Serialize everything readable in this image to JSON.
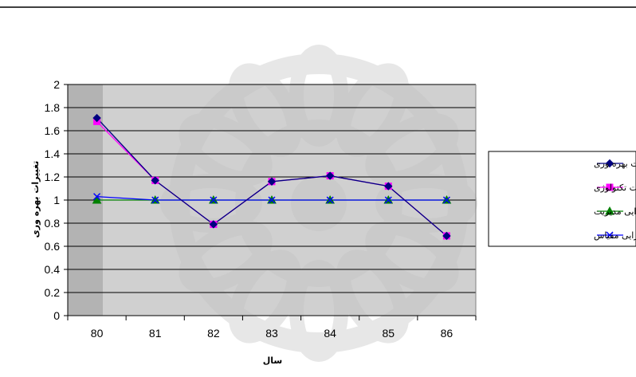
{
  "chart_data": {
    "type": "line",
    "title": "",
    "xlabel": "سال",
    "ylabel": "تغییرات بهره وری",
    "categories": [
      "80",
      "81",
      "82",
      "83",
      "84",
      "85",
      "86"
    ],
    "ylim": [
      0,
      2
    ],
    "yticks": [
      "0",
      "0.2",
      "0.4",
      "0.6",
      "0.8",
      "1",
      "1.2",
      "1.4",
      "1.6",
      "1.8",
      "2"
    ],
    "grid": true,
    "legend_position": "right",
    "series": [
      {
        "name": "تغییرات بهره وری",
        "values": [
          1.71,
          1.17,
          0.79,
          1.16,
          1.21,
          1.12,
          0.69
        ],
        "color": "#000080",
        "marker": "diamond"
      },
      {
        "name": "تغییرات تکنولوژی",
        "values": [
          1.68,
          1.17,
          0.79,
          1.16,
          1.21,
          1.12,
          0.69
        ],
        "color": "#ff00ff",
        "marker": "square"
      },
      {
        "name": "تغییرات  کارایی مدیریت",
        "values": [
          1.0,
          1.0,
          1.0,
          1.0,
          1.0,
          1.0,
          1.0
        ],
        "color": "#008000",
        "marker": "triangle"
      },
      {
        "name": "تغییرات کارایی مقیاس",
        "values": [
          1.03,
          1.0,
          1.0,
          1.0,
          1.0,
          1.0,
          1.0
        ],
        "color": "#0000ff",
        "marker": "x"
      }
    ]
  }
}
